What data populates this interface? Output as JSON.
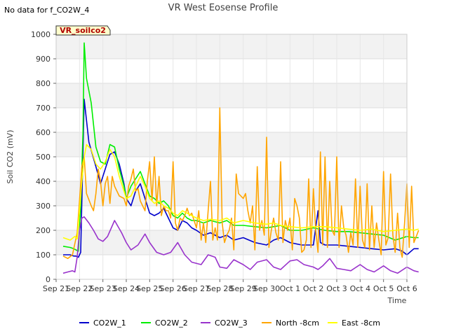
{
  "chart_data": {
    "type": "line",
    "title": "VR West Eosense Profile",
    "note": "No data for f_CO2W_4",
    "site_label": "VR_soilco2",
    "xlabel": "Time",
    "ylabel": "Soil CO2 (mV)",
    "ylim": [
      0,
      1000
    ],
    "yticks": [
      0,
      100,
      200,
      300,
      400,
      500,
      600,
      700,
      800,
      900,
      1000
    ],
    "xlim": [
      0,
      15
    ],
    "xtick_labels": [
      "Sep 21",
      "Sep 22",
      "Sep 23",
      "Sep 24",
      "Sep 25",
      "Sep 26",
      "Sep 27",
      "Sep 28",
      "Sep 29",
      "Sep 30",
      "Oct 1",
      "Oct 2",
      "Oct 3",
      "Oct 4",
      "Oct 5",
      "Oct 6"
    ],
    "grid": true,
    "banded_background": true,
    "legend_position": "bottom",
    "series": [
      {
        "name": "CO2W_1",
        "color": "#0000cc",
        "x": [
          0.3,
          0.6,
          0.75,
          0.85,
          0.95,
          1.05,
          1.2,
          1.4,
          1.7,
          1.9,
          2.1,
          2.3,
          2.5,
          2.7,
          2.9,
          3.0,
          3.2,
          3.4,
          3.6,
          3.8,
          4.0,
          4.2,
          4.4,
          4.6,
          4.8,
          5.0,
          5.2,
          5.4,
          5.6,
          5.8,
          6.0,
          6.3,
          6.6,
          7.0,
          7.3,
          7.6,
          8.0,
          8.5,
          9.0,
          9.3,
          9.6,
          10.0,
          10.5,
          11.0,
          11.2,
          11.3,
          11.5,
          12.0,
          12.5,
          13.0,
          13.5,
          14.0,
          14.5,
          14.8,
          15.0,
          15.3,
          15.5
        ],
        "y": [
          100,
          100,
          95,
          95,
          90,
          110,
          735,
          560,
          460,
          390,
          450,
          510,
          520,
          470,
          390,
          330,
          300,
          360,
          390,
          330,
          270,
          260,
          270,
          290,
          250,
          210,
          200,
          240,
          230,
          210,
          200,
          180,
          190,
          170,
          180,
          160,
          170,
          150,
          140,
          160,
          170,
          150,
          140,
          140,
          280,
          150,
          140,
          140,
          135,
          130,
          125,
          120,
          125,
          115,
          100,
          125,
          125
        ]
      },
      {
        "name": "CO2W_2",
        "color": "#00ee00",
        "x": [
          0.3,
          0.6,
          0.75,
          0.85,
          0.95,
          1.05,
          1.15,
          1.2,
          1.3,
          1.5,
          1.7,
          1.9,
          2.1,
          2.3,
          2.5,
          2.7,
          2.9,
          3.0,
          3.2,
          3.4,
          3.6,
          3.8,
          4.0,
          4.2,
          4.4,
          4.6,
          4.8,
          5.0,
          5.2,
          5.4,
          5.6,
          5.8,
          6.0,
          6.3,
          6.6,
          7.0,
          7.3,
          7.6,
          8.0,
          8.5,
          9.0,
          9.3,
          9.6,
          10.0,
          10.5,
          11.0,
          11.5,
          12.0,
          12.5,
          13.0,
          13.5,
          14.0,
          14.5,
          15.0,
          15.3,
          15.5
        ],
        "y": [
          135,
          130,
          125,
          120,
          115,
          300,
          600,
          965,
          820,
          720,
          540,
          480,
          470,
          550,
          540,
          450,
          380,
          330,
          380,
          410,
          440,
          390,
          340,
          330,
          310,
          320,
          300,
          260,
          250,
          270,
          250,
          240,
          240,
          230,
          240,
          230,
          240,
          220,
          220,
          215,
          210,
          215,
          220,
          200,
          200,
          210,
          200,
          195,
          195,
          190,
          185,
          180,
          160,
          175,
          170,
          170
        ]
      },
      {
        "name": "CO2W_3",
        "color": "#9933cc",
        "x": [
          0.3,
          0.5,
          0.7,
          0.8,
          0.9,
          1.0,
          1.1,
          1.2,
          1.4,
          1.6,
          1.8,
          2.0,
          2.2,
          2.5,
          2.8,
          3.0,
          3.2,
          3.5,
          3.8,
          4.0,
          4.3,
          4.6,
          4.9,
          5.2,
          5.5,
          5.8,
          6.2,
          6.5,
          6.8,
          7.0,
          7.3,
          7.6,
          8.0,
          8.3,
          8.6,
          9.0,
          9.3,
          9.6,
          10.0,
          10.3,
          10.6,
          11.0,
          11.2,
          11.4,
          11.7,
          12.0,
          12.3,
          12.6,
          13.0,
          13.3,
          13.6,
          14.0,
          14.3,
          14.6,
          15.0,
          15.3,
          15.5
        ],
        "y": [
          25,
          30,
          35,
          30,
          90,
          200,
          250,
          255,
          230,
          200,
          165,
          155,
          175,
          240,
          190,
          150,
          120,
          140,
          185,
          150,
          110,
          100,
          110,
          150,
          100,
          70,
          60,
          100,
          90,
          50,
          45,
          80,
          60,
          40,
          70,
          80,
          50,
          40,
          75,
          80,
          60,
          50,
          40,
          55,
          85,
          45,
          40,
          35,
          60,
          40,
          30,
          55,
          35,
          25,
          50,
          35,
          30
        ]
      },
      {
        "name": "North -8cm",
        "color": "#ffa500",
        "x": [
          0.3,
          0.5,
          0.7,
          0.9,
          1.0,
          1.1,
          1.2,
          1.3,
          1.5,
          1.6,
          1.7,
          1.8,
          1.9,
          2.0,
          2.1,
          2.2,
          2.3,
          2.4,
          2.5,
          2.7,
          2.9,
          3.0,
          3.1,
          3.2,
          3.3,
          3.4,
          3.5,
          3.6,
          3.7,
          3.8,
          3.9,
          4.0,
          4.1,
          4.2,
          4.3,
          4.4,
          4.5,
          4.6,
          4.7,
          4.8,
          4.9,
          5.0,
          5.1,
          5.2,
          5.3,
          5.4,
          5.5,
          5.6,
          5.7,
          5.8,
          6.0,
          6.1,
          6.2,
          6.3,
          6.4,
          6.5,
          6.6,
          6.7,
          6.8,
          6.9,
          7.0,
          7.1,
          7.2,
          7.3,
          7.4,
          7.5,
          7.6,
          7.7,
          7.8,
          8.0,
          8.1,
          8.2,
          8.3,
          8.4,
          8.5,
          8.6,
          8.7,
          8.8,
          8.9,
          9.0,
          9.1,
          9.2,
          9.3,
          9.4,
          9.5,
          9.6,
          9.7,
          9.8,
          9.9,
          10.0,
          10.1,
          10.2,
          10.3,
          10.4,
          10.5,
          10.6,
          10.7,
          10.8,
          10.9,
          11.0,
          11.1,
          11.2,
          11.3,
          11.4,
          11.5,
          11.6,
          11.7,
          11.8,
          11.9,
          12.0,
          12.1,
          12.2,
          12.3,
          12.4,
          12.5,
          12.6,
          12.7,
          12.8,
          12.9,
          13.0,
          13.1,
          13.2,
          13.3,
          13.4,
          13.5,
          13.6,
          13.7,
          13.8,
          13.9,
          14.0,
          14.1,
          14.2,
          14.3,
          14.4,
          14.5,
          14.6,
          14.7,
          14.8,
          14.9,
          15.0,
          15.1,
          15.2,
          15.3,
          15.5
        ],
        "y": [
          95,
          85,
          100,
          190,
          320,
          460,
          500,
          350,
          300,
          280,
          350,
          450,
          400,
          300,
          390,
          420,
          310,
          420,
          380,
          340,
          330,
          300,
          380,
          410,
          450,
          360,
          370,
          320,
          300,
          280,
          400,
          480,
          320,
          500,
          300,
          420,
          260,
          300,
          280,
          280,
          250,
          480,
          230,
          200,
          250,
          240,
          260,
          290,
          260,
          270,
          210,
          280,
          160,
          230,
          150,
          280,
          400,
          160,
          210,
          160,
          700,
          230,
          150,
          180,
          200,
          250,
          120,
          430,
          350,
          330,
          350,
          280,
          230,
          300,
          120,
          460,
          200,
          240,
          180,
          580,
          130,
          200,
          250,
          190,
          160,
          480,
          150,
          240,
          200,
          250,
          120,
          330,
          300,
          250,
          110,
          120,
          160,
          410,
          130,
          370,
          200,
          110,
          520,
          140,
          500,
          130,
          400,
          200,
          180,
          500,
          130,
          300,
          210,
          180,
          110,
          190,
          140,
          410,
          130,
          380,
          160,
          130,
          390,
          120,
          300,
          130,
          230,
          160,
          100,
          440,
          140,
          170,
          430,
          180,
          110,
          270,
          130,
          90,
          230,
          390,
          130,
          380,
          150,
          200
        ]
      },
      {
        "name": "East -8cm",
        "color": "#ffff00",
        "x": [
          0.3,
          0.6,
          0.8,
          0.9,
          1.0,
          1.1,
          1.2,
          1.3,
          1.5,
          1.7,
          1.9,
          2.1,
          2.3,
          2.5,
          2.7,
          2.9,
          3.0,
          3.2,
          3.4,
          3.6,
          3.8,
          4.0,
          4.2,
          4.4,
          4.6,
          4.8,
          5.0,
          5.2,
          5.4,
          5.6,
          5.8,
          6.0,
          6.3,
          6.6,
          7.0,
          7.3,
          7.6,
          8.0,
          8.5,
          9.0,
          9.3,
          9.6,
          10.0,
          10.5,
          11.0,
          11.5,
          12.0,
          12.5,
          13.0,
          13.5,
          14.0,
          14.5,
          15.0,
          15.3,
          15.5
        ],
        "y": [
          170,
          160,
          175,
          165,
          280,
          400,
          500,
          550,
          530,
          470,
          450,
          480,
          530,
          500,
          420,
          360,
          330,
          340,
          380,
          420,
          380,
          330,
          310,
          320,
          300,
          290,
          270,
          260,
          280,
          270,
          260,
          250,
          240,
          245,
          240,
          250,
          230,
          240,
          230,
          225,
          230,
          220,
          215,
          210,
          215,
          215,
          210,
          205,
          200,
          205,
          195,
          200,
          205,
          200,
          205
        ]
      }
    ]
  }
}
